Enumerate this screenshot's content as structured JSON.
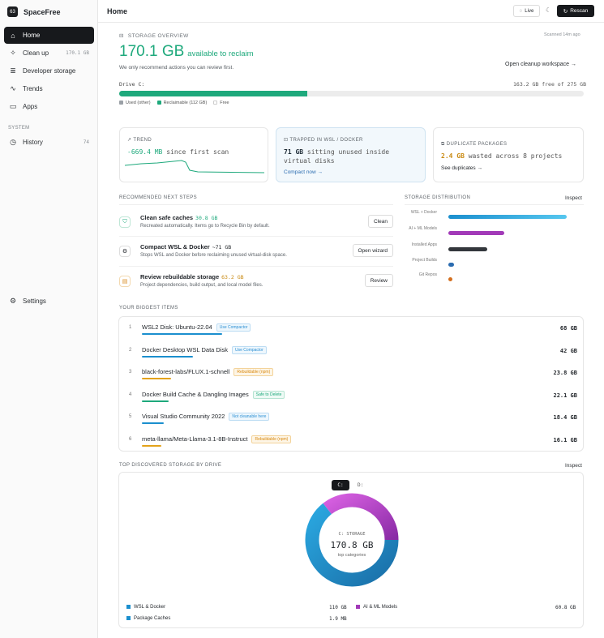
{
  "app": {
    "name": "SpaceFree",
    "logo": "63"
  },
  "nav": {
    "items": [
      {
        "label": "Home",
        "icon": "home-icon",
        "count": ""
      },
      {
        "label": "Clean up",
        "icon": "sparkle-icon",
        "count": "170.1 GB"
      },
      {
        "label": "Developer storage",
        "icon": "database-icon",
        "count": ""
      },
      {
        "label": "Trends",
        "icon": "trend-icon",
        "count": ""
      },
      {
        "label": "Apps",
        "icon": "monitor-icon",
        "count": ""
      }
    ],
    "section": "SYSTEM",
    "history": {
      "label": "History",
      "count": "74"
    },
    "settings": "Settings"
  },
  "header": {
    "title": "Home",
    "live": "Live",
    "rescan": "Rescan"
  },
  "overview": {
    "label": "STORAGE OVERVIEW",
    "scanned": "Scanned 14m ago",
    "big_value": "170.1 GB",
    "big_text": "available to reclaim",
    "subtitle": "We only recommend actions you can review first.",
    "open_workspace": "Open cleanup workspace",
    "drive_label": "Drive C:",
    "drive_free": "163.2 GB free of 275 GB",
    "used_fraction": 0.405,
    "legend": [
      "Used (other)",
      "Reclaimable (112 GB)",
      "Free"
    ]
  },
  "cards": {
    "trend": {
      "label": "TREND",
      "value": "-669.4 MB",
      "suffix": "since first scan"
    },
    "wsl": {
      "label": "TRAPPED IN WSL / DOCKER",
      "value": "71 GB",
      "text": "sitting unused inside virtual disks",
      "link": "Compact now"
    },
    "dup": {
      "label": "DUPLICATE PACKAGES",
      "value": "2.4 GB",
      "text": "wasted across 8 projects",
      "link": "See duplicates"
    }
  },
  "steps": {
    "title": "RECOMMENDED NEXT STEPS",
    "items": [
      {
        "title": "Clean safe caches",
        "value": "30.8 GB",
        "desc": "Recreated automatically. Items go to Recycle Bin by default.",
        "button": "Clean"
      },
      {
        "title": "Compact WSL & Docker",
        "value": "~71 GB",
        "desc": "Stops WSL and Docker before reclaiming unused virtual-disk space.",
        "button": "Open wizard"
      },
      {
        "title": "Review rebuildable storage",
        "value": "63.2 GB",
        "desc": "Project dependencies, build output, and local model files.",
        "button": "Review"
      }
    ]
  },
  "distribution": {
    "title": "STORAGE DISTRIBUTION",
    "inspect": "Inspect",
    "rows": [
      {
        "name": "WSL + Docker",
        "fraction": 1.0,
        "color": "#1b8fce"
      },
      {
        "name": "AI + ML Models",
        "fraction": 0.47,
        "color": "#a23ab8"
      },
      {
        "name": "Installed Apps",
        "fraction": 0.33,
        "color": "#33373c"
      },
      {
        "name": "Project Builds",
        "fraction": 0.05,
        "color": "#2b6cb0"
      },
      {
        "name": "Git Repos",
        "fraction": 0.03,
        "color": "#d46f1f"
      }
    ]
  },
  "biggest": {
    "title": "YOUR BIGGEST ITEMS",
    "items": [
      {
        "idx": "1",
        "name": "WSL2 Disk: Ubuntu-22.04",
        "badge": "Use Compactor",
        "badge_type": "blue",
        "size": "68 GB",
        "fraction": 0.33
      },
      {
        "idx": "2",
        "name": "Docker Desktop WSL Data Disk",
        "badge": "Use Compactor",
        "badge_type": "blue",
        "size": "42 GB",
        "fraction": 0.21
      },
      {
        "idx": "3",
        "name": "black-forest-labs/FLUX.1-schnell",
        "badge": "Rebuildable (npm)",
        "badge_type": "orange",
        "size": "23.8 GB",
        "fraction": 0.12
      },
      {
        "idx": "4",
        "name": "Docker Build Cache & Dangling Images",
        "badge": "Safe to Delete",
        "badge_type": "green",
        "size": "22.1 GB",
        "fraction": 0.11
      },
      {
        "idx": "5",
        "name": "Visual Studio Community 2022",
        "badge": "Not cleanable here",
        "badge_type": "blue",
        "size": "18.4 GB",
        "fraction": 0.09
      },
      {
        "idx": "6",
        "name": "meta-llama/Meta-Llama-3.1-8B-Instruct",
        "badge": "Rebuildable (npm)",
        "badge_type": "orange",
        "size": "16.1 GB",
        "fraction": 0.08
      }
    ]
  },
  "drives": {
    "title": "TOP DISCOVERED STORAGE BY DRIVE",
    "inspect": "Inspect",
    "tabs": [
      "C:",
      "D:"
    ],
    "center_label": "C: STORAGE",
    "center_value": "170.8 GB",
    "center_sub": "top categories",
    "legend": [
      {
        "name": "WSL & Docker",
        "value": "110 GB",
        "color": "#1b8fce"
      },
      {
        "name": "AI & ML Models",
        "value": "60.8 GB",
        "color": "#a23ab8"
      },
      {
        "name": "Package Caches",
        "value": "1.9 MB",
        "color": "#1b8fce"
      }
    ]
  }
}
